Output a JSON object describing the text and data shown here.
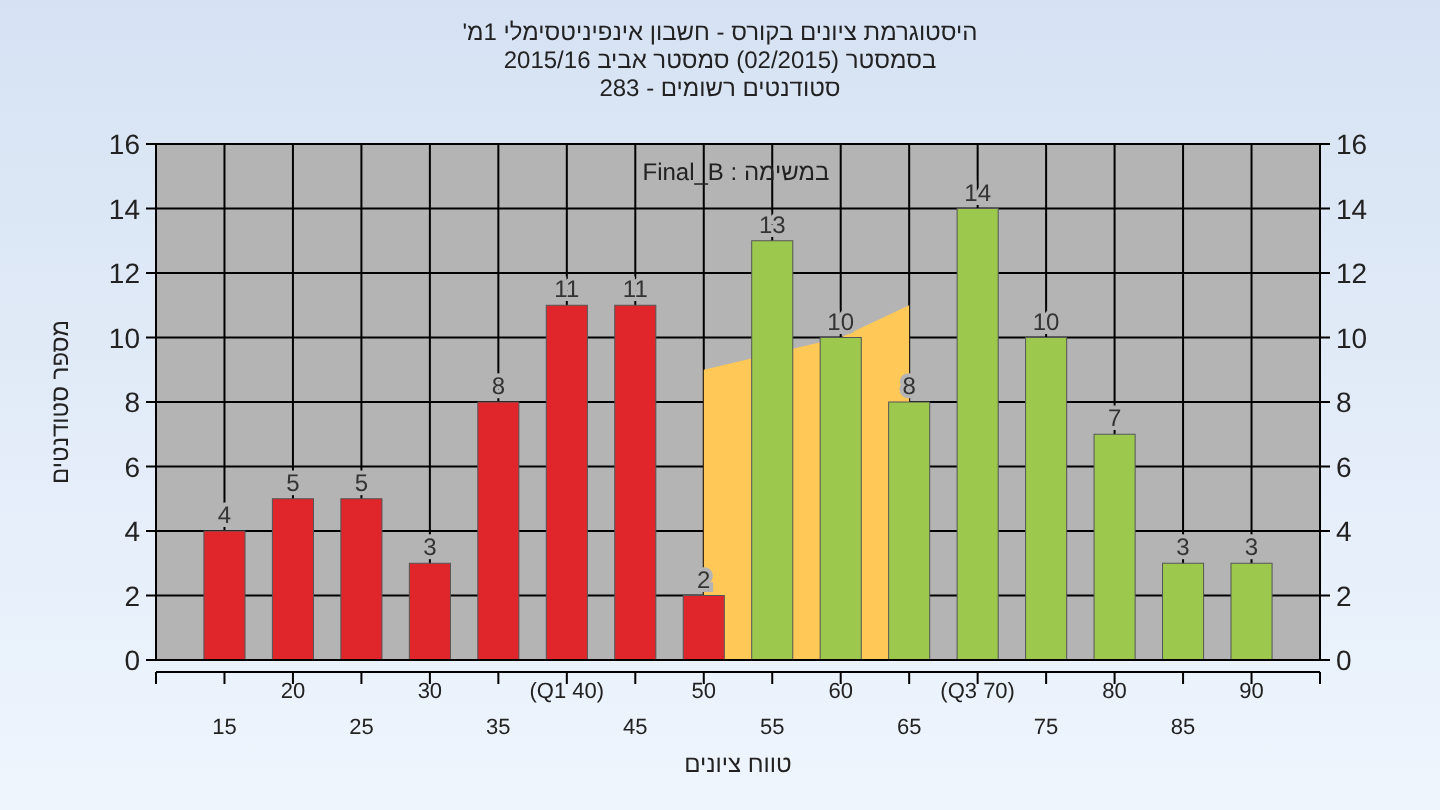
{
  "chart_data": {
    "type": "bar",
    "title": "היסטוגרמת ציונים בקורס - חשבון אינפיניטסימלי 1מ'",
    "subtitle": "בסמסטר (02/2015) סמסטר אביב 2015/16\nסטודנטים רשומים - 283",
    "xlabel": "טווח ציונים",
    "ylabel": "מספר סטודנטים",
    "annotations": [
      "במשימה : Final_B"
    ],
    "categories": [
      "15",
      "20",
      "25",
      "30",
      "35",
      "(Q1 40)",
      "45",
      "50",
      "55",
      "60",
      "65",
      "(Q3 70)",
      "75",
      "80",
      "85",
      "90"
    ],
    "series": [
      {
        "type": "area",
        "color": "#ffc857",
        "values": [
          null,
          null,
          null,
          null,
          null,
          null,
          null,
          9,
          null,
          10,
          11,
          null,
          null,
          null,
          null,
          null
        ]
      },
      {
        "type": "bar",
        "colors": [
          "#e0262b",
          "#e0262b",
          "#e0262b",
          "#e0262b",
          "#e0262b",
          "#e0262b",
          "#e0262b",
          "#e0262b",
          "#9cc94d",
          "#9cc94d",
          "#9cc94d",
          "#9cc94d",
          "#9cc94d",
          "#9cc94d",
          "#9cc94d",
          "#9cc94d"
        ],
        "values": [
          4,
          5,
          5,
          3,
          8,
          11,
          11,
          2,
          13,
          10,
          8,
          14,
          10,
          7,
          3,
          3
        ],
        "value_labels": [
          "4",
          "5",
          "5",
          "3",
          "8",
          "11",
          "11",
          "2",
          "13",
          "10",
          "8",
          "14",
          "10",
          "7",
          "3",
          "3"
        ]
      }
    ],
    "ylim": [
      0,
      16
    ],
    "yticks": [
      0,
      2,
      4,
      6,
      8,
      10,
      12,
      14,
      16
    ],
    "y2lim": [
      0,
      16
    ],
    "y2ticks": [
      0,
      2,
      4,
      6,
      8,
      10,
      12,
      14,
      16
    ],
    "grid": true
  }
}
